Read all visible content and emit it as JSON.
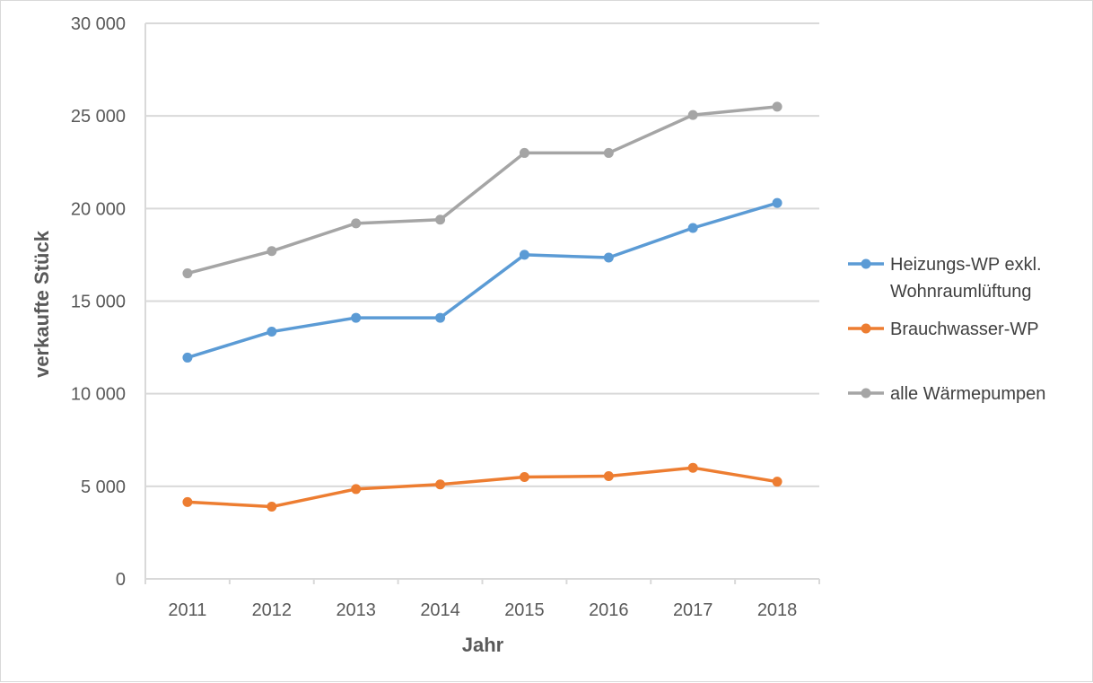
{
  "chart_data": {
    "type": "line",
    "title": "",
    "xlabel": "Jahr",
    "ylabel": "verkaufte Stück",
    "ylim": [
      0,
      30000
    ],
    "yticks": [
      "0",
      "5 000",
      "10 000",
      "15 000",
      "20 000",
      "25 000",
      "30 000"
    ],
    "grid": true,
    "legend_position": "right",
    "categories": [
      "2011",
      "2012",
      "2013",
      "2014",
      "2015",
      "2016",
      "2017",
      "2018"
    ],
    "series": [
      {
        "name": "Heizungs-WP exkl. Wohnraumlüftung",
        "name_lines": [
          "Heizungs-WP exkl.",
          "Wohnraumlüftung"
        ],
        "color": "#5B9BD5",
        "values": [
          11950,
          13350,
          14100,
          14100,
          17500,
          17350,
          18950,
          20300
        ]
      },
      {
        "name": "Brauchwasser-WP",
        "name_lines": [
          "Brauchwasser-WP"
        ],
        "color": "#ED7D31",
        "values": [
          4150,
          3900,
          4850,
          5100,
          5500,
          5550,
          6000,
          5250
        ]
      },
      {
        "name": "alle Wärmepumpen",
        "name_lines": [
          "alle Wärmepumpen"
        ],
        "color": "#A5A5A5",
        "values": [
          16500,
          17700,
          19200,
          19400,
          23000,
          23000,
          25050,
          25500
        ]
      }
    ]
  }
}
